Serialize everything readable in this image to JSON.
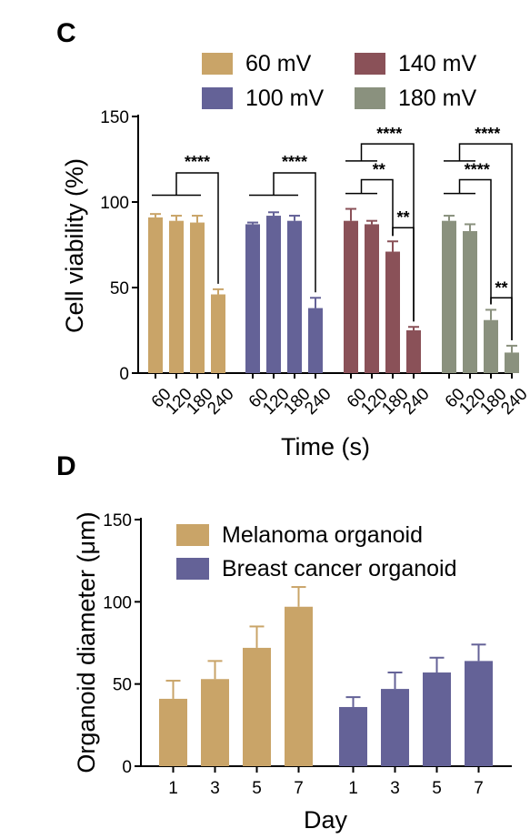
{
  "colors": {
    "mv60": "#c9a468",
    "mv100": "#646297",
    "mv140": "#8a5158",
    "mv180": "#8a917e",
    "melanoma": "#c9a468",
    "breast": "#646297"
  },
  "chart_data": [
    {
      "panel": "C",
      "type": "bar",
      "ylabel": "Cell viability (%)",
      "xlabel": "Time (s)",
      "ylim": [
        0,
        150
      ],
      "yticks": [
        0,
        50,
        100,
        150
      ],
      "legend_position": "top",
      "categories": [
        "60",
        "120",
        "180",
        "240"
      ],
      "series": [
        {
          "name": "60 mV",
          "color_key": "mv60",
          "values": [
            91,
            89,
            88,
            46
          ],
          "errors": [
            2,
            3,
            4,
            3
          ]
        },
        {
          "name": "100 mV",
          "color_key": "mv100",
          "values": [
            87,
            92,
            89,
            38
          ],
          "errors": [
            1,
            2,
            3,
            6
          ]
        },
        {
          "name": "140 mV",
          "color_key": "mv140",
          "values": [
            89,
            87,
            71,
            25
          ],
          "errors": [
            7,
            2,
            6,
            2
          ]
        },
        {
          "name": "180 mV",
          "color_key": "mv180",
          "values": [
            89,
            83,
            31,
            12
          ],
          "errors": [
            3,
            4,
            6,
            4
          ]
        }
      ],
      "significance": [
        {
          "group": 0,
          "compare": "60,120,180 vs 240",
          "label": "****"
        },
        {
          "group": 1,
          "compare": "60,120,180 vs 240",
          "label": "****"
        },
        {
          "group": 2,
          "compare": "60,120 vs 240",
          "label": "****"
        },
        {
          "group": 2,
          "compare": "60,120 vs 180",
          "label": "**"
        },
        {
          "group": 2,
          "compare": "180 vs 240",
          "label": "**"
        },
        {
          "group": 3,
          "compare": "60,120 vs 240",
          "label": "****"
        },
        {
          "group": 3,
          "compare": "60,120 vs 180",
          "label": "****"
        },
        {
          "group": 3,
          "compare": "180 vs 240",
          "label": "**"
        }
      ]
    },
    {
      "panel": "D",
      "type": "bar",
      "ylabel": "Organoid diameter (μm)",
      "xlabel": "Day",
      "ylim": [
        0,
        150
      ],
      "yticks": [
        0,
        50,
        100,
        150
      ],
      "legend_position": "top-left",
      "categories": [
        "1",
        "3",
        "5",
        "7"
      ],
      "series": [
        {
          "name": "Melanoma organoid",
          "color_key": "melanoma",
          "values": [
            41,
            53,
            72,
            97
          ],
          "errors": [
            11,
            11,
            13,
            12
          ]
        },
        {
          "name": "Breast cancer organoid",
          "color_key": "breast",
          "values": [
            36,
            47,
            57,
            64
          ],
          "errors": [
            6,
            10,
            9,
            10
          ]
        }
      ]
    }
  ]
}
